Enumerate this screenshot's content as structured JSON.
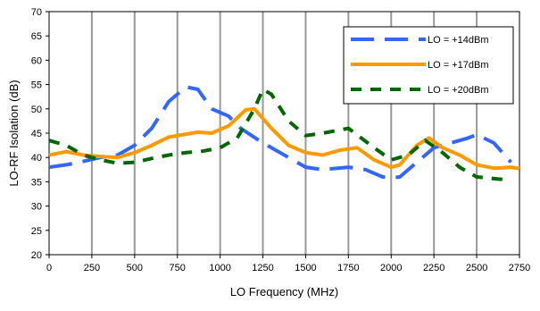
{
  "chart_data": {
    "type": "line",
    "xlabel": "LO Frequency (MHz)",
    "ylabel": "LO-RF Isolation (dB)",
    "xlim": [
      0,
      2750
    ],
    "ylim": [
      20,
      70
    ],
    "xticks": [
      0,
      250,
      500,
      750,
      1000,
      1250,
      1500,
      1750,
      2000,
      2250,
      2500,
      2750
    ],
    "yticks": [
      20,
      25,
      30,
      35,
      40,
      45,
      50,
      55,
      60,
      65,
      70
    ],
    "grid": "vertical",
    "legend_position": "top-right",
    "series": [
      {
        "name": "LO = +14dBm",
        "color": "#3366ff",
        "dash": "long-dash",
        "points": [
          [
            0,
            38
          ],
          [
            100,
            38.5
          ],
          [
            200,
            39.2
          ],
          [
            300,
            40
          ],
          [
            400,
            40.5
          ],
          [
            500,
            42.5
          ],
          [
            600,
            46
          ],
          [
            700,
            51.5
          ],
          [
            800,
            54.5
          ],
          [
            870,
            54
          ],
          [
            950,
            50
          ],
          [
            1050,
            48.5
          ],
          [
            1120,
            46
          ],
          [
            1250,
            43
          ],
          [
            1400,
            40
          ],
          [
            1500,
            38
          ],
          [
            1600,
            37.5
          ],
          [
            1750,
            38
          ],
          [
            1850,
            37.5
          ],
          [
            1950,
            36
          ],
          [
            2000,
            35.8
          ],
          [
            2050,
            36
          ],
          [
            2150,
            39
          ],
          [
            2250,
            42
          ],
          [
            2350,
            43
          ],
          [
            2450,
            44
          ],
          [
            2500,
            44.7
          ],
          [
            2600,
            43
          ],
          [
            2700,
            39
          ]
        ]
      },
      {
        "name": "LO = +17dBm",
        "color": "#ff9900",
        "dash": "solid",
        "points": [
          [
            0,
            40.5
          ],
          [
            100,
            41.2
          ],
          [
            200,
            40.5
          ],
          [
            300,
            40.2
          ],
          [
            400,
            40
          ],
          [
            500,
            41
          ],
          [
            600,
            42.5
          ],
          [
            700,
            44.2
          ],
          [
            800,
            44.8
          ],
          [
            870,
            45.2
          ],
          [
            950,
            45
          ],
          [
            1050,
            46.5
          ],
          [
            1150,
            49.8
          ],
          [
            1200,
            50
          ],
          [
            1250,
            48
          ],
          [
            1300,
            46
          ],
          [
            1400,
            42.5
          ],
          [
            1500,
            41
          ],
          [
            1600,
            40.5
          ],
          [
            1700,
            41.5
          ],
          [
            1800,
            42
          ],
          [
            1900,
            39.5
          ],
          [
            2000,
            38
          ],
          [
            2050,
            38.5
          ],
          [
            2150,
            42.5
          ],
          [
            2220,
            44
          ],
          [
            2300,
            42
          ],
          [
            2400,
            40.5
          ],
          [
            2500,
            38.5
          ],
          [
            2600,
            37.8
          ],
          [
            2700,
            38
          ],
          [
            2750,
            37.7
          ]
        ]
      },
      {
        "name": "LO = +20dBm",
        "color": "#006600",
        "dash": "dash",
        "points": [
          [
            0,
            43.5
          ],
          [
            100,
            42.5
          ],
          [
            200,
            40.5
          ],
          [
            300,
            39.5
          ],
          [
            400,
            38.8
          ],
          [
            500,
            39
          ],
          [
            600,
            39.8
          ],
          [
            700,
            40.5
          ],
          [
            800,
            41
          ],
          [
            900,
            41.3
          ],
          [
            1000,
            42
          ],
          [
            1100,
            44
          ],
          [
            1200,
            50
          ],
          [
            1250,
            54
          ],
          [
            1300,
            53
          ],
          [
            1400,
            47.5
          ],
          [
            1500,
            44.5
          ],
          [
            1600,
            45
          ],
          [
            1750,
            46
          ],
          [
            1900,
            42
          ],
          [
            2000,
            39.5
          ],
          [
            2100,
            40.5
          ],
          [
            2200,
            43.5
          ],
          [
            2300,
            41
          ],
          [
            2400,
            38
          ],
          [
            2500,
            36
          ],
          [
            2650,
            35.5
          ]
        ]
      }
    ]
  }
}
